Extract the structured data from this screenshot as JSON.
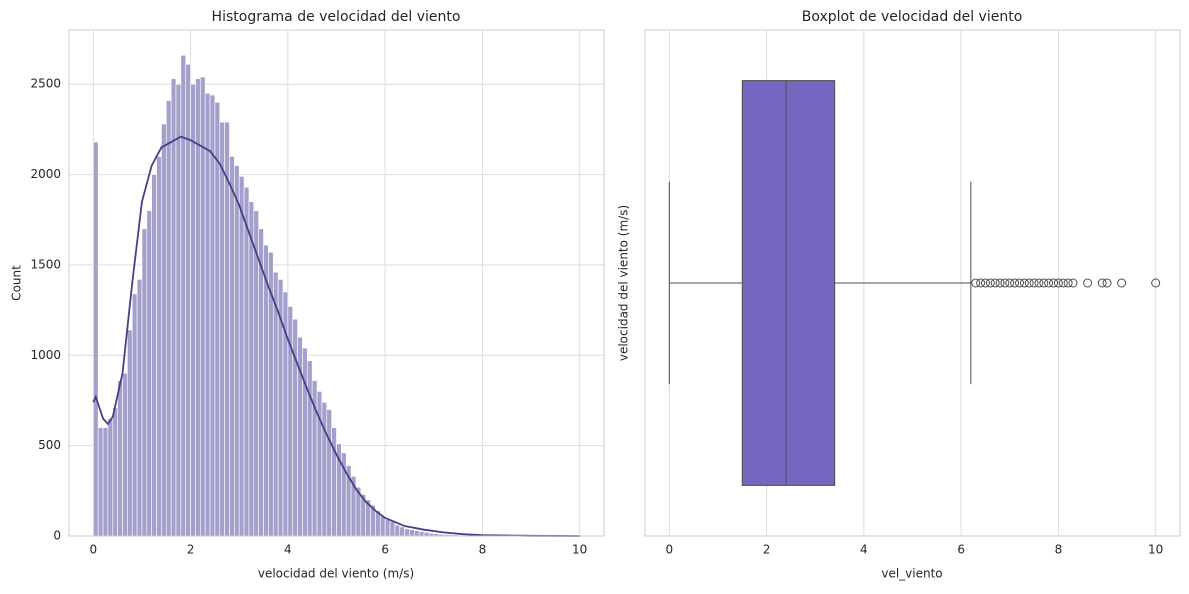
{
  "chart_data": [
    {
      "type": "histogram",
      "title": "Histograma de velocidad del viento",
      "xlabel": "velocidad del viento (m/s)",
      "ylabel": "Count",
      "bins": [
        0,
        0.1,
        0.2,
        0.3,
        0.4,
        0.5,
        0.6,
        0.7,
        0.8,
        0.9,
        1,
        1.1,
        1.2,
        1.3,
        1.4,
        1.5,
        1.6,
        1.7,
        1.8,
        1.9,
        2,
        2.1,
        2.2,
        2.3,
        2.4,
        2.5,
        2.6,
        2.7,
        2.8,
        2.9,
        3,
        3.1,
        3.2,
        3.3,
        3.4,
        3.5,
        3.6,
        3.7,
        3.8,
        3.9,
        4,
        4.1,
        4.2,
        4.3,
        4.4,
        4.5,
        4.6,
        4.7,
        4.8,
        4.9,
        5,
        5.1,
        5.2,
        5.3,
        5.4,
        5.5,
        5.6,
        5.7,
        5.8,
        5.9,
        6,
        6.1,
        6.2,
        6.3,
        6.4,
        6.5,
        6.6,
        6.7,
        6.8,
        6.9,
        7,
        7.1,
        7.2,
        7.3,
        7.4,
        7.5,
        7.6,
        7.7,
        7.8,
        7.9,
        8,
        8.1,
        8.2,
        8.3,
        8.4,
        8.5,
        8.6,
        8.7,
        8.8,
        8.9,
        9,
        9.1,
        9.2,
        9.3,
        9.4,
        9.5,
        9.6,
        9.7,
        9.8,
        9.9,
        10
      ],
      "counts": [
        2180,
        600,
        600,
        650,
        710,
        860,
        900,
        1140,
        1340,
        1420,
        1700,
        1800,
        2000,
        2100,
        2280,
        2410,
        2530,
        2500,
        2660,
        2610,
        2500,
        2530,
        2540,
        2450,
        2440,
        2400,
        2290,
        2290,
        2100,
        2050,
        1990,
        1930,
        1850,
        1800,
        1700,
        1610,
        1570,
        1460,
        1420,
        1350,
        1270,
        1200,
        1100,
        1040,
        970,
        860,
        800,
        740,
        700,
        600,
        510,
        460,
        390,
        330,
        270,
        230,
        200,
        170,
        140,
        110,
        90,
        80,
        60,
        50,
        40,
        35,
        30,
        25,
        20,
        15,
        12,
        10,
        8,
        7,
        6,
        5,
        4,
        3,
        3,
        2,
        2,
        2,
        1,
        1,
        1,
        1,
        1,
        0,
        0,
        0,
        1,
        0,
        0,
        0,
        0,
        0,
        0,
        0,
        0,
        1
      ],
      "color": "#a4a0cc",
      "kde": {
        "color": "#483d8b",
        "x": [
          0,
          0.05,
          0.2,
          0.3,
          0.4,
          0.6,
          0.8,
          1,
          1.2,
          1.4,
          1.6,
          1.8,
          2,
          2.2,
          2.4,
          2.6,
          2.8,
          3,
          3.2,
          3.4,
          3.6,
          3.8,
          4,
          4.2,
          4.4,
          4.6,
          4.8,
          5,
          5.2,
          5.4,
          5.6,
          5.8,
          6,
          6.4,
          6.8,
          7.2,
          7.6,
          8,
          9,
          10
        ],
        "values": [
          740,
          770,
          650,
          620,
          660,
          900,
          1400,
          1850,
          2050,
          2150,
          2180,
          2210,
          2190,
          2160,
          2130,
          2060,
          1950,
          1830,
          1680,
          1530,
          1380,
          1240,
          1090,
          950,
          810,
          680,
          560,
          450,
          350,
          260,
          190,
          140,
          100,
          55,
          35,
          20,
          10,
          5,
          1,
          0
        ]
      },
      "xlim": [
        -0.5,
        10.5
      ],
      "ylim": [
        0,
        2800
      ],
      "xticks": [
        0,
        2,
        4,
        6,
        8,
        10
      ],
      "yticks": [
        0,
        500,
        1000,
        1500,
        2000,
        2500
      ],
      "grid": true
    },
    {
      "type": "box",
      "title": "Boxplot de velocidad del viento",
      "xlabel": "vel_viento",
      "ylabel": "velocidad del viento (m/s)",
      "whislo": 0,
      "q1": 1.5,
      "med": 2.4,
      "q3": 3.4,
      "whishi": 6.2,
      "fliers": [
        6.3,
        6.4,
        6.5,
        6.6,
        6.7,
        6.8,
        6.9,
        7,
        7.1,
        7.2,
        7.3,
        7.4,
        7.5,
        7.6,
        7.7,
        7.8,
        7.9,
        8,
        8.1,
        8.2,
        8.3,
        8.6,
        8.9,
        9,
        9.3,
        10
      ],
      "color": "#7566c0",
      "xlim": [
        -0.5,
        10.5
      ],
      "xticks": [
        0,
        2,
        4,
        6,
        8,
        10
      ],
      "grid": true
    }
  ]
}
